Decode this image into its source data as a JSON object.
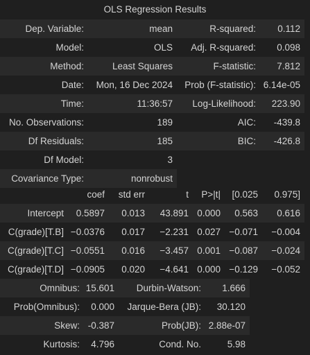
{
  "title": "OLS Regression Results",
  "summary": [
    [
      "Dep. Variable:",
      "mean",
      "R-squared:",
      "0.112"
    ],
    [
      "Model:",
      "OLS",
      "Adj. R-squared:",
      "0.098"
    ],
    [
      "Method:",
      "Least Squares",
      "F-statistic:",
      "7.812"
    ],
    [
      "Date:",
      "Mon, 16 Dec 2024",
      "Prob (F-statistic):",
      "6.14e-05"
    ],
    [
      "Time:",
      "11:36:57",
      "Log-Likelihood:",
      "223.90"
    ],
    [
      "No. Observations:",
      "189",
      "AIC:",
      "-439.8"
    ],
    [
      "Df Residuals:",
      "185",
      "BIC:",
      "-426.8"
    ],
    [
      "Df Model:",
      "3",
      "",
      ""
    ],
    [
      "Covariance Type:",
      "nonrobust",
      "",
      ""
    ]
  ],
  "coef_headers": [
    "",
    "coef",
    "std err",
    "t",
    "P>|t|",
    "[0.025",
    "0.975]"
  ],
  "coef_rows": [
    [
      "Intercept",
      "0.5897",
      "0.013",
      "43.891",
      "0.000",
      "0.563",
      "0.616"
    ],
    [
      "C(grade)[T.B]",
      "−0.0376",
      "0.017",
      "−2.231",
      "0.027",
      "−0.071",
      "−0.004"
    ],
    [
      "C(grade)[T.C]",
      "−0.0551",
      "0.016",
      "−3.457",
      "0.001",
      "−0.087",
      "−0.024"
    ],
    [
      "C(grade)[T.D]",
      "−0.0905",
      "0.020",
      "−4.641",
      "0.000",
      "−0.129",
      "−0.052"
    ]
  ],
  "diagnostics": [
    [
      "Omnibus:",
      "15.601",
      "Durbin-Watson:",
      "1.666"
    ],
    [
      "Prob(Omnibus):",
      "0.000",
      "Jarque-Bera (JB):",
      "30.120"
    ],
    [
      "Skew:",
      "-0.387",
      "Prob(JB):",
      "2.88e-07"
    ],
    [
      "Kurtosis:",
      "4.796",
      "Cond. No.",
      "5.98"
    ]
  ]
}
